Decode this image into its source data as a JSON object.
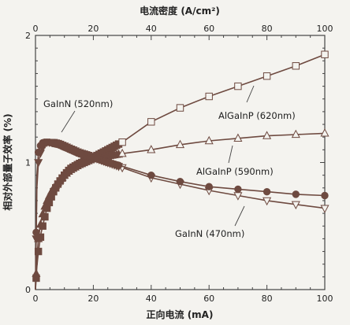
{
  "chart_data": {
    "type": "line",
    "top_axis": {
      "label": "电流密度 (A/cm²)",
      "ticks": [
        "0",
        "20",
        "40",
        "60",
        "80",
        "100"
      ],
      "range": [
        0,
        100
      ]
    },
    "xlabel": "正向电流 (mA)",
    "ylabel": "相对外部量子效率 (%)",
    "xlim": [
      0,
      100
    ],
    "ylim": [
      0,
      2
    ],
    "x_ticks": [
      "0",
      "20",
      "40",
      "60",
      "80",
      "100"
    ],
    "y_ticks": [
      "0",
      "1",
      "2"
    ],
    "grid": false,
    "series": [
      {
        "name": "AlGaInP (620nm)",
        "marker": "open-square",
        "x": [
          0,
          0.5,
          1,
          2,
          3,
          4,
          5,
          6,
          8,
          10,
          12,
          15,
          18,
          20,
          25,
          30,
          40,
          50,
          60,
          70,
          80,
          90,
          100
        ],
        "y": [
          0,
          0.18,
          0.3,
          0.45,
          0.55,
          0.64,
          0.7,
          0.76,
          0.84,
          0.9,
          0.95,
          0.99,
          1.02,
          1.04,
          1.1,
          1.16,
          1.32,
          1.43,
          1.52,
          1.6,
          1.68,
          1.76,
          1.85
        ],
        "open_marker_x": [
          30,
          40,
          50,
          60,
          70,
          80,
          90,
          100
        ],
        "color": "#6e4a40"
      },
      {
        "name": "AlGaInP (590nm)",
        "marker": "open-triangle-up",
        "x": [
          0,
          0.5,
          1,
          2,
          3,
          4,
          5,
          6,
          8,
          10,
          12,
          15,
          18,
          20,
          25,
          30,
          40,
          50,
          60,
          70,
          80,
          90,
          100
        ],
        "y": [
          0,
          0.25,
          0.4,
          0.55,
          0.64,
          0.7,
          0.75,
          0.79,
          0.85,
          0.9,
          0.94,
          0.98,
          1.01,
          1.03,
          1.05,
          1.07,
          1.1,
          1.14,
          1.17,
          1.19,
          1.21,
          1.22,
          1.23
        ],
        "open_marker_x": [
          30,
          40,
          50,
          60,
          70,
          80,
          90,
          100
        ],
        "color": "#6e4a40"
      },
      {
        "name": "GaInN (470nm)",
        "marker": "open-triangle-down",
        "x": [
          0,
          0.5,
          1,
          2,
          3,
          4,
          5,
          6,
          8,
          10,
          12,
          15,
          18,
          20,
          25,
          30,
          40,
          50,
          60,
          70,
          80,
          90,
          100
        ],
        "y": [
          0,
          0.8,
          1.0,
          1.1,
          1.14,
          1.16,
          1.16,
          1.16,
          1.15,
          1.13,
          1.11,
          1.08,
          1.06,
          1.04,
          1.0,
          0.96,
          0.88,
          0.83,
          0.78,
          0.74,
          0.7,
          0.67,
          0.64
        ],
        "open_marker_x": [
          30,
          40,
          50,
          60,
          70,
          80,
          90,
          100
        ],
        "color": "#6e4a40"
      },
      {
        "name": "GaInN (520nm)",
        "marker": "filled-circle",
        "x": [
          0,
          0.5,
          1,
          2,
          3,
          4,
          5,
          6,
          8,
          10,
          12,
          15,
          18,
          20,
          25,
          30,
          40,
          50,
          60,
          70,
          80,
          90,
          100
        ],
        "y": [
          0,
          0.9,
          1.08,
          1.15,
          1.16,
          1.16,
          1.16,
          1.15,
          1.14,
          1.12,
          1.1,
          1.07,
          1.05,
          1.04,
          1.0,
          0.97,
          0.9,
          0.85,
          0.81,
          0.79,
          0.77,
          0.75,
          0.74
        ],
        "open_marker_x": [],
        "color": "#6e4a40"
      }
    ],
    "annotations": [
      {
        "text": "GaInN (520nm)",
        "series": "GaInN (520nm)"
      },
      {
        "text": "AlGaInP (620nm)",
        "series": "AlGaInP (620nm)"
      },
      {
        "text": "AlGaInP (590nm)",
        "series": "AlGaInP (590nm)"
      },
      {
        "text": "GaInN (470nm)",
        "series": "GaInN (470nm)"
      }
    ]
  }
}
